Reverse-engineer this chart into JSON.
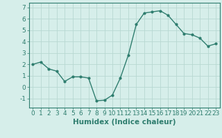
{
  "x": [
    0,
    1,
    2,
    3,
    4,
    5,
    6,
    7,
    8,
    9,
    10,
    11,
    12,
    13,
    14,
    15,
    16,
    17,
    18,
    19,
    20,
    21,
    22,
    23
  ],
  "y": [
    2.0,
    2.2,
    1.6,
    1.4,
    0.5,
    0.9,
    0.9,
    0.8,
    -1.2,
    -1.15,
    -0.7,
    0.8,
    2.8,
    5.5,
    6.5,
    6.6,
    6.7,
    6.3,
    5.5,
    4.7,
    4.6,
    4.3,
    3.6,
    3.8
  ],
  "line_color": "#2e7d6e",
  "marker": "o",
  "marker_size": 2.0,
  "linewidth": 1.0,
  "background_color": "#d6eeea",
  "grid_color": "#b8d8d2",
  "xlabel": "Humidex (Indice chaleur)",
  "ylim": [
    -1.8,
    7.4
  ],
  "xlim": [
    -0.5,
    23.5
  ],
  "yticks": [
    -1,
    0,
    1,
    2,
    3,
    4,
    5,
    6,
    7
  ],
  "xtick_labels": [
    "0",
    "1",
    "2",
    "3",
    "4",
    "5",
    "6",
    "7",
    "8",
    "9",
    "10",
    "11",
    "12",
    "13",
    "14",
    "15",
    "16",
    "17",
    "18",
    "19",
    "20",
    "21",
    "22",
    "23"
  ],
  "xlabel_fontsize": 7.5,
  "tick_fontsize": 6.5
}
